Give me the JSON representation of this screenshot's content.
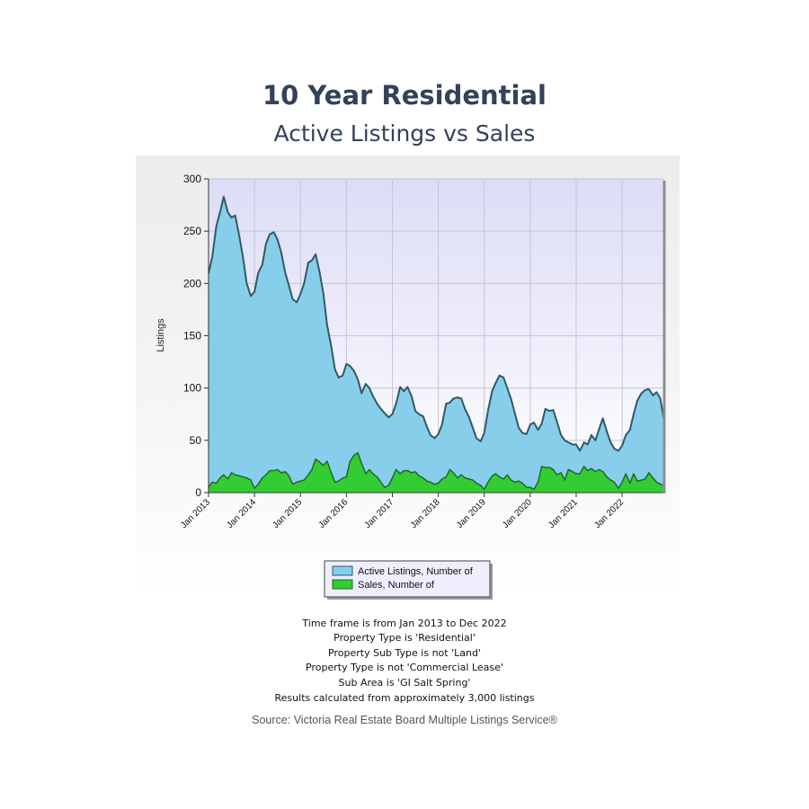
{
  "header": {
    "title": "10 Year Residential",
    "subtitle": "Active Listings vs Sales"
  },
  "chart_data": {
    "type": "area",
    "ylabel": "Listings",
    "xlabel": "",
    "ylim": [
      0,
      300
    ],
    "yticks": [
      0,
      50,
      100,
      150,
      200,
      250,
      300
    ],
    "xlim": [
      2013.0,
      2022.917
    ],
    "xticks": [
      {
        "value": 2013,
        "label": "Jan 2013"
      },
      {
        "value": 2014,
        "label": "Jan 2014"
      },
      {
        "value": 2015,
        "label": "Jan 2015"
      },
      {
        "value": 2016,
        "label": "Jan 2016"
      },
      {
        "value": 2017,
        "label": "Jan 2017"
      },
      {
        "value": 2018,
        "label": "Jan 2018"
      },
      {
        "value": 2019,
        "label": "Jan 2019"
      },
      {
        "value": 2020,
        "label": "Jan 2020"
      },
      {
        "value": 2021,
        "label": "Jan 2021"
      },
      {
        "value": 2022,
        "label": "Jan 2022"
      }
    ],
    "grid": true,
    "legend_position": "bottom-center",
    "series": [
      {
        "name": "Active Listings, Number of",
        "color": "#87ceeb",
        "line_color": "#2f5a66",
        "points": [
          [
            2013.0,
            210
          ],
          [
            2013.08,
            225
          ],
          [
            2013.17,
            255
          ],
          [
            2013.25,
            268
          ],
          [
            2013.33,
            283
          ],
          [
            2013.42,
            268
          ],
          [
            2013.5,
            263
          ],
          [
            2013.58,
            265
          ],
          [
            2013.67,
            245
          ],
          [
            2013.75,
            225
          ],
          [
            2013.83,
            200
          ],
          [
            2013.92,
            188
          ],
          [
            2014.0,
            192
          ],
          [
            2014.08,
            210
          ],
          [
            2014.17,
            218
          ],
          [
            2014.25,
            238
          ],
          [
            2014.33,
            247
          ],
          [
            2014.42,
            249
          ],
          [
            2014.5,
            242
          ],
          [
            2014.58,
            230
          ],
          [
            2014.67,
            210
          ],
          [
            2014.75,
            198
          ],
          [
            2014.83,
            185
          ],
          [
            2014.92,
            182
          ],
          [
            2015.0,
            190
          ],
          [
            2015.08,
            200
          ],
          [
            2015.17,
            220
          ],
          [
            2015.25,
            222
          ],
          [
            2015.33,
            228
          ],
          [
            2015.42,
            210
          ],
          [
            2015.5,
            190
          ],
          [
            2015.58,
            160
          ],
          [
            2015.67,
            140
          ],
          [
            2015.75,
            118
          ],
          [
            2015.83,
            110
          ],
          [
            2015.92,
            112
          ],
          [
            2016.0,
            123
          ],
          [
            2016.08,
            121
          ],
          [
            2016.17,
            116
          ],
          [
            2016.25,
            108
          ],
          [
            2016.33,
            95
          ],
          [
            2016.42,
            104
          ],
          [
            2016.5,
            100
          ],
          [
            2016.58,
            92
          ],
          [
            2016.67,
            85
          ],
          [
            2016.75,
            80
          ],
          [
            2016.83,
            76
          ],
          [
            2016.92,
            72
          ],
          [
            2017.0,
            75
          ],
          [
            2017.08,
            85
          ],
          [
            2017.17,
            101
          ],
          [
            2017.25,
            97
          ],
          [
            2017.33,
            101
          ],
          [
            2017.42,
            92
          ],
          [
            2017.5,
            78
          ],
          [
            2017.58,
            75
          ],
          [
            2017.67,
            73
          ],
          [
            2017.75,
            63
          ],
          [
            2017.83,
            55
          ],
          [
            2017.92,
            52
          ],
          [
            2018.0,
            56
          ],
          [
            2018.08,
            65
          ],
          [
            2018.17,
            85
          ],
          [
            2018.25,
            86
          ],
          [
            2018.33,
            90
          ],
          [
            2018.42,
            91
          ],
          [
            2018.5,
            90
          ],
          [
            2018.58,
            80
          ],
          [
            2018.67,
            72
          ],
          [
            2018.75,
            62
          ],
          [
            2018.83,
            52
          ],
          [
            2018.92,
            49
          ],
          [
            2019.0,
            57
          ],
          [
            2019.08,
            78
          ],
          [
            2019.17,
            97
          ],
          [
            2019.25,
            105
          ],
          [
            2019.33,
            112
          ],
          [
            2019.42,
            110
          ],
          [
            2019.5,
            100
          ],
          [
            2019.58,
            90
          ],
          [
            2019.67,
            75
          ],
          [
            2019.75,
            62
          ],
          [
            2019.83,
            57
          ],
          [
            2019.92,
            56
          ],
          [
            2020.0,
            65
          ],
          [
            2020.08,
            67
          ],
          [
            2020.17,
            60
          ],
          [
            2020.25,
            66
          ],
          [
            2020.33,
            80
          ],
          [
            2020.42,
            78
          ],
          [
            2020.5,
            79
          ],
          [
            2020.58,
            68
          ],
          [
            2020.67,
            55
          ],
          [
            2020.75,
            50
          ],
          [
            2020.83,
            48
          ],
          [
            2020.92,
            46
          ],
          [
            2021.0,
            46
          ],
          [
            2021.08,
            40
          ],
          [
            2021.17,
            48
          ],
          [
            2021.25,
            46
          ],
          [
            2021.33,
            55
          ],
          [
            2021.42,
            50
          ],
          [
            2021.5,
            61
          ],
          [
            2021.58,
            71
          ],
          [
            2021.67,
            58
          ],
          [
            2021.75,
            48
          ],
          [
            2021.83,
            42
          ],
          [
            2021.92,
            40
          ],
          [
            2022.0,
            45
          ],
          [
            2022.08,
            55
          ],
          [
            2022.17,
            60
          ],
          [
            2022.25,
            75
          ],
          [
            2022.33,
            88
          ],
          [
            2022.42,
            95
          ],
          [
            2022.5,
            98
          ],
          [
            2022.58,
            99
          ],
          [
            2022.67,
            93
          ],
          [
            2022.75,
            96
          ],
          [
            2022.83,
            90
          ],
          [
            2022.917,
            68
          ]
        ]
      },
      {
        "name": "Sales, Number of",
        "color": "#33cc33",
        "line_color": "#1e6b1e",
        "points": [
          [
            2013.0,
            5
          ],
          [
            2013.08,
            10
          ],
          [
            2013.17,
            9
          ],
          [
            2013.25,
            14
          ],
          [
            2013.33,
            17
          ],
          [
            2013.42,
            13
          ],
          [
            2013.5,
            19
          ],
          [
            2013.58,
            17
          ],
          [
            2013.67,
            16
          ],
          [
            2013.75,
            15
          ],
          [
            2013.83,
            14
          ],
          [
            2013.92,
            12
          ],
          [
            2014.0,
            4
          ],
          [
            2014.08,
            8
          ],
          [
            2014.17,
            14
          ],
          [
            2014.25,
            17
          ],
          [
            2014.33,
            21
          ],
          [
            2014.42,
            21
          ],
          [
            2014.5,
            22
          ],
          [
            2014.58,
            19
          ],
          [
            2014.67,
            20
          ],
          [
            2014.75,
            16
          ],
          [
            2014.83,
            8
          ],
          [
            2014.92,
            10
          ],
          [
            2015.0,
            11
          ],
          [
            2015.08,
            12
          ],
          [
            2015.17,
            17
          ],
          [
            2015.25,
            22
          ],
          [
            2015.33,
            32
          ],
          [
            2015.42,
            29
          ],
          [
            2015.5,
            26
          ],
          [
            2015.58,
            30
          ],
          [
            2015.67,
            19
          ],
          [
            2015.75,
            10
          ],
          [
            2015.83,
            11
          ],
          [
            2015.92,
            14
          ],
          [
            2016.0,
            15
          ],
          [
            2016.08,
            30
          ],
          [
            2016.17,
            36
          ],
          [
            2016.25,
            38
          ],
          [
            2016.33,
            28
          ],
          [
            2016.42,
            18
          ],
          [
            2016.5,
            22
          ],
          [
            2016.58,
            18
          ],
          [
            2016.67,
            15
          ],
          [
            2016.75,
            10
          ],
          [
            2016.83,
            5
          ],
          [
            2016.92,
            7
          ],
          [
            2017.0,
            14
          ],
          [
            2017.08,
            22
          ],
          [
            2017.17,
            18
          ],
          [
            2017.25,
            21
          ],
          [
            2017.33,
            21
          ],
          [
            2017.42,
            19
          ],
          [
            2017.5,
            20
          ],
          [
            2017.58,
            16
          ],
          [
            2017.67,
            14
          ],
          [
            2017.75,
            11
          ],
          [
            2017.83,
            10
          ],
          [
            2017.92,
            8
          ],
          [
            2018.0,
            9
          ],
          [
            2018.08,
            13
          ],
          [
            2018.17,
            15
          ],
          [
            2018.25,
            22
          ],
          [
            2018.33,
            19
          ],
          [
            2018.42,
            14
          ],
          [
            2018.5,
            17
          ],
          [
            2018.58,
            14
          ],
          [
            2018.67,
            13
          ],
          [
            2018.75,
            12
          ],
          [
            2018.83,
            9
          ],
          [
            2018.92,
            7
          ],
          [
            2019.0,
            3
          ],
          [
            2019.08,
            10
          ],
          [
            2019.17,
            16
          ],
          [
            2019.25,
            18
          ],
          [
            2019.33,
            15
          ],
          [
            2019.42,
            13
          ],
          [
            2019.5,
            17
          ],
          [
            2019.58,
            12
          ],
          [
            2019.67,
            10
          ],
          [
            2019.75,
            11
          ],
          [
            2019.83,
            9
          ],
          [
            2019.92,
            5
          ],
          [
            2020.0,
            5
          ],
          [
            2020.08,
            3
          ],
          [
            2020.17,
            10
          ],
          [
            2020.25,
            25
          ],
          [
            2020.33,
            24
          ],
          [
            2020.42,
            24
          ],
          [
            2020.5,
            22
          ],
          [
            2020.58,
            17
          ],
          [
            2020.67,
            19
          ],
          [
            2020.75,
            12
          ],
          [
            2020.83,
            22
          ],
          [
            2020.92,
            20
          ],
          [
            2021.0,
            18
          ],
          [
            2021.08,
            18
          ],
          [
            2021.17,
            25
          ],
          [
            2021.25,
            21
          ],
          [
            2021.33,
            23
          ],
          [
            2021.42,
            20
          ],
          [
            2021.5,
            22
          ],
          [
            2021.58,
            20
          ],
          [
            2021.67,
            15
          ],
          [
            2021.75,
            12
          ],
          [
            2021.83,
            10
          ],
          [
            2021.92,
            4
          ],
          [
            2022.0,
            10
          ],
          [
            2022.08,
            18
          ],
          [
            2022.17,
            9
          ],
          [
            2022.25,
            18
          ],
          [
            2022.33,
            11
          ],
          [
            2022.42,
            12
          ],
          [
            2022.5,
            13
          ],
          [
            2022.58,
            19
          ],
          [
            2022.67,
            14
          ],
          [
            2022.75,
            10
          ],
          [
            2022.83,
            8
          ],
          [
            2022.917,
            7
          ]
        ]
      }
    ]
  },
  "notes": {
    "lines": [
      "Time frame is from Jan 2013 to Dec 2022",
      "Property Type is 'Residential'",
      "Property Sub Type is not 'Land'",
      "Property Type is not 'Commercial Lease'",
      "Sub Area is 'GI Salt Spring'"
    ],
    "result": "Results calculated from approximately 3,000 listings"
  },
  "source": "Source: Victoria Real Estate Board Multiple Listings Service®"
}
